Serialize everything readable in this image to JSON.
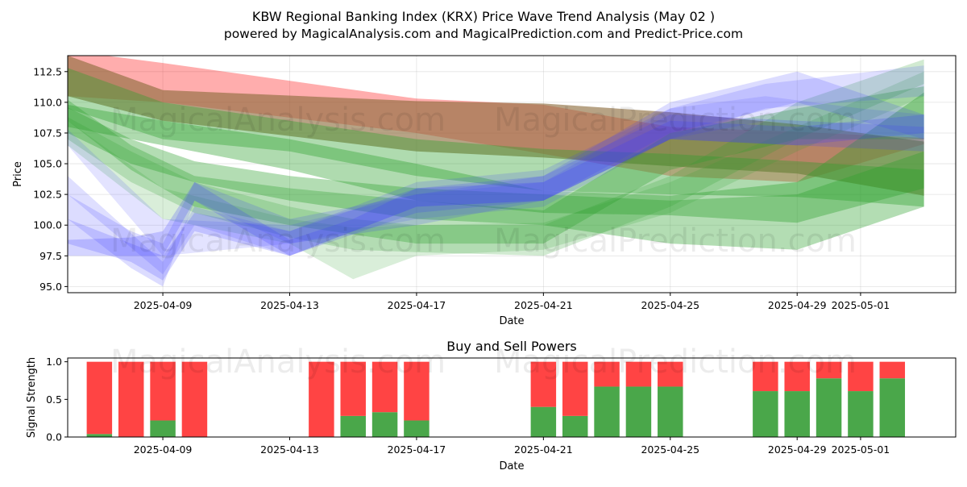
{
  "header": {
    "title": "KBW Regional Banking Index (KRX) Price Wave Trend Analysis (May 02 )",
    "subtitle": "powered by MagicalAnalysis.com and MagicalPrediction.com and Predict-Price.com"
  },
  "watermarks": {
    "top_left": "MagicalAnalysis.com",
    "top_right": "MagicalPrediction.com",
    "mid_left": "MagicalAnalysis.com",
    "mid_right": "MagicalPrediction.com",
    "bottom_left": "MagicalAnalysis.com",
    "bottom_right": "MagicalPrediction.com"
  },
  "colors": {
    "red_band": "#ff0000",
    "brown_band": "#8b6b3a",
    "green_band": "#2ca02c",
    "blue_band": "#3b3bff",
    "buy_bar": "#4aa74a",
    "sell_bar": "#ff4444"
  },
  "chart_data": [
    {
      "type": "area",
      "title": "",
      "xlabel": "Date",
      "ylabel": "Price",
      "xlim": [
        "2025-04-06",
        "2025-05-04"
      ],
      "ylim": [
        94.5,
        113.8
      ],
      "grid": true,
      "x_ticks": [
        "2025-04-09",
        "2025-04-13",
        "2025-04-17",
        "2025-04-21",
        "2025-04-25",
        "2025-04-29",
        "2025-05-01"
      ],
      "y_ticks": [
        95.0,
        97.5,
        100.0,
        102.5,
        105.0,
        107.5,
        110.0,
        112.5
      ],
      "series": [
        {
          "name": "red wave",
          "color_key": "red_band",
          "opacity": 0.32,
          "x": [
            "2025-04-06",
            "2025-04-09",
            "2025-04-17",
            "2025-04-21",
            "2025-04-25",
            "2025-04-29",
            "2025-05-03"
          ],
          "upper": [
            114.2,
            113.2,
            110.3,
            109.8,
            108.0,
            107.6,
            107.1
          ],
          "lower": [
            110.5,
            110.0,
            107.5,
            105.8,
            104.0,
            103.5,
            106.6
          ]
        },
        {
          "name": "brown wave",
          "color_key": "brown_band",
          "opacity": 0.62,
          "x": [
            "2025-04-06",
            "2025-04-09",
            "2025-04-17",
            "2025-04-21",
            "2025-04-25",
            "2025-04-29",
            "2025-05-03"
          ],
          "upper": [
            113.8,
            111.0,
            110.1,
            109.9,
            109.2,
            108.2,
            106.8
          ],
          "lower": [
            110.5,
            108.5,
            106.0,
            105.5,
            104.8,
            104.2,
            102.4
          ]
        },
        {
          "name": "green wave 1",
          "color_key": "green_band",
          "opacity": 0.38,
          "x": [
            "2025-04-06",
            "2025-04-09",
            "2025-04-13",
            "2025-04-17",
            "2025-04-21",
            "2025-04-25",
            "2025-04-29",
            "2025-05-03"
          ],
          "upper": [
            112.8,
            110.0,
            108.5,
            107.0,
            106.2,
            105.8,
            105.2,
            104.5
          ],
          "lower": [
            109.5,
            107.0,
            106.0,
            104.0,
            102.8,
            102.5,
            102.3,
            101.5
          ]
        },
        {
          "name": "green wave 2",
          "color_key": "green_band",
          "opacity": 0.38,
          "x": [
            "2025-04-06",
            "2025-04-09",
            "2025-04-13",
            "2025-04-17",
            "2025-04-21",
            "2025-04-25",
            "2025-04-29",
            "2025-05-03"
          ],
          "upper": [
            109.8,
            108.5,
            107.0,
            105.0,
            102.8,
            102.4,
            103.5,
            110.8
          ],
          "lower": [
            108.0,
            106.5,
            104.5,
            102.0,
            101.0,
            100.8,
            100.2,
            103.0
          ]
        },
        {
          "name": "green wave 3",
          "color_key": "green_band",
          "opacity": 0.36,
          "x": [
            "2025-04-06",
            "2025-04-08",
            "2025-04-10",
            "2025-04-13",
            "2025-04-17",
            "2025-04-21",
            "2025-04-25",
            "2025-04-29",
            "2025-05-03"
          ],
          "upper": [
            109.6,
            107.0,
            105.2,
            104.0,
            103.0,
            102.5,
            102.0,
            102.5,
            106.0
          ],
          "lower": [
            107.5,
            105.0,
            103.5,
            102.0,
            100.5,
            100.0,
            98.5,
            98.0,
            101.5
          ]
        },
        {
          "name": "green wave 4",
          "color_key": "green_band",
          "opacity": 0.32,
          "x": [
            "2025-04-06",
            "2025-04-08",
            "2025-04-10",
            "2025-04-13",
            "2025-04-17",
            "2025-04-21",
            "2025-04-25",
            "2025-04-29",
            "2025-05-03"
          ],
          "upper": [
            110.2,
            106.5,
            104.0,
            103.0,
            102.0,
            101.2,
            107.5,
            109.5,
            111.3
          ],
          "lower": [
            108.5,
            104.5,
            101.5,
            100.0,
            98.5,
            98.5,
            104.5,
            107.0,
            107.0
          ]
        },
        {
          "name": "green wave 5",
          "color_key": "green_band",
          "opacity": 0.22,
          "x": [
            "2025-04-06",
            "2025-04-08",
            "2025-04-10",
            "2025-04-13",
            "2025-04-15",
            "2025-04-17",
            "2025-04-21",
            "2025-04-25",
            "2025-04-29",
            "2025-05-03"
          ],
          "upper": [
            108.8,
            106.0,
            103.5,
            101.5,
            100.5,
            100.0,
            100.0,
            104.0,
            110.0,
            113.5
          ],
          "lower": [
            107.0,
            103.5,
            101.0,
            99.0,
            98.0,
            97.8,
            97.5,
            101.5,
            107.0,
            111.5
          ]
        },
        {
          "name": "green wave 6",
          "color_key": "green_band",
          "opacity": 0.18,
          "x": [
            "2025-04-06",
            "2025-04-09",
            "2025-04-13",
            "2025-04-15",
            "2025-04-17",
            "2025-04-21",
            "2025-04-25",
            "2025-04-29",
            "2025-05-03"
          ],
          "upper": [
            108.5,
            103.0,
            100.5,
            99.8,
            100.0,
            100.2,
            103.5,
            108.0,
            112.5
          ],
          "lower": [
            106.5,
            100.5,
            98.5,
            95.6,
            97.5,
            98.0,
            101.0,
            106.0,
            110.5
          ]
        },
        {
          "name": "blue wave 1",
          "color_key": "blue_band",
          "opacity": 0.14,
          "x": [
            "2025-04-06",
            "2025-04-09",
            "2025-04-13",
            "2025-04-17",
            "2025-04-21",
            "2025-04-25",
            "2025-04-28",
            "2025-05-01",
            "2025-05-03"
          ],
          "upper": [
            107.8,
            100.5,
            100.0,
            102.5,
            103.5,
            109.5,
            110.5,
            109.5,
            109.0
          ],
          "lower": [
            106.5,
            97.5,
            98.5,
            100.5,
            101.5,
            107.0,
            108.5,
            107.5,
            107.0
          ]
        },
        {
          "name": "blue wave 2",
          "color_key": "blue_band",
          "opacity": 0.16,
          "x": [
            "2025-04-06",
            "2025-04-09",
            "2025-04-10",
            "2025-04-13",
            "2025-04-17",
            "2025-04-21",
            "2025-04-25",
            "2025-04-28",
            "2025-05-03"
          ],
          "upper": [
            104.0,
            97.0,
            101.5,
            99.5,
            103.5,
            104.5,
            109.5,
            111.5,
            113.0
          ],
          "lower": [
            102.5,
            96.0,
            100.0,
            97.5,
            101.5,
            102.0,
            107.0,
            109.5,
            110.5
          ]
        },
        {
          "name": "blue wave 3",
          "color_key": "blue_band",
          "opacity": 0.18,
          "x": [
            "2025-04-06",
            "2025-04-08",
            "2025-04-09",
            "2025-04-10",
            "2025-04-13",
            "2025-04-17",
            "2025-04-21",
            "2025-04-25",
            "2025-04-29",
            "2025-05-03"
          ],
          "upper": [
            102.5,
            99.5,
            98.5,
            103.5,
            100.5,
            102.5,
            104.0,
            110.0,
            112.5,
            109.0
          ],
          "lower": [
            100.5,
            96.5,
            95.0,
            102.0,
            98.5,
            100.0,
            102.0,
            107.5,
            110.0,
            107.0
          ]
        },
        {
          "name": "blue wave 4",
          "color_key": "blue_band",
          "opacity": 0.2,
          "x": [
            "2025-04-06",
            "2025-04-08",
            "2025-04-09",
            "2025-04-10",
            "2025-04-13",
            "2025-04-17",
            "2025-04-21",
            "2025-04-25",
            "2025-04-29",
            "2025-05-03"
          ],
          "upper": [
            100.5,
            98.5,
            97.5,
            101.0,
            99.5,
            103.0,
            104.0,
            109.0,
            108.5,
            108.0
          ],
          "lower": [
            98.5,
            97.0,
            95.5,
            99.5,
            97.5,
            101.0,
            102.0,
            107.0,
            106.5,
            106.0
          ]
        },
        {
          "name": "blue wave 5",
          "color_key": "blue_band",
          "opacity": 0.22,
          "x": [
            "2025-04-06",
            "2025-04-08",
            "2025-04-09",
            "2025-04-10",
            "2025-04-13",
            "2025-04-15",
            "2025-04-17",
            "2025-04-21",
            "2025-04-25",
            "2025-04-29",
            "2025-05-03"
          ],
          "upper": [
            98.8,
            99.0,
            99.5,
            103.5,
            98.8,
            100.5,
            103.0,
            103.5,
            108.5,
            108.0,
            109.0
          ],
          "lower": [
            97.5,
            97.5,
            97.5,
            102.0,
            97.5,
            99.5,
            101.5,
            102.0,
            107.0,
            106.5,
            107.5
          ]
        }
      ]
    },
    {
      "type": "bar",
      "title": "Buy and Sell Powers",
      "xlabel": "Date",
      "ylabel": "Signal Strength",
      "xlim": [
        "2025-04-06",
        "2025-05-04"
      ],
      "ylim": [
        0,
        1.05
      ],
      "grid": false,
      "x_ticks": [
        "2025-04-09",
        "2025-04-13",
        "2025-04-17",
        "2025-04-21",
        "2025-04-25",
        "2025-04-29",
        "2025-05-01"
      ],
      "y_ticks": [
        0.0,
        0.5,
        1.0
      ],
      "categories": [
        "2025-04-07",
        "2025-04-08",
        "2025-04-09",
        "2025-04-10",
        "2025-04-14",
        "2025-04-15",
        "2025-04-16",
        "2025-04-17",
        "2025-04-21",
        "2025-04-22",
        "2025-04-23",
        "2025-04-24",
        "2025-04-25",
        "2025-04-28",
        "2025-04-29",
        "2025-04-30",
        "2025-05-01",
        "2025-05-02"
      ],
      "series": [
        {
          "name": "Buy",
          "color_key": "buy_bar",
          "values": [
            0.04,
            0.0,
            0.22,
            0.0,
            0.0,
            0.28,
            0.33,
            0.22,
            0.4,
            0.28,
            0.67,
            0.67,
            0.67,
            0.61,
            0.61,
            0.78,
            0.61,
            0.78
          ]
        },
        {
          "name": "Sell",
          "color_key": "sell_bar",
          "values": [
            0.96,
            1.0,
            0.78,
            1.0,
            1.0,
            0.72,
            0.67,
            0.78,
            0.6,
            0.72,
            0.33,
            0.33,
            0.33,
            0.39,
            0.39,
            0.22,
            0.39,
            0.22
          ]
        }
      ]
    }
  ]
}
